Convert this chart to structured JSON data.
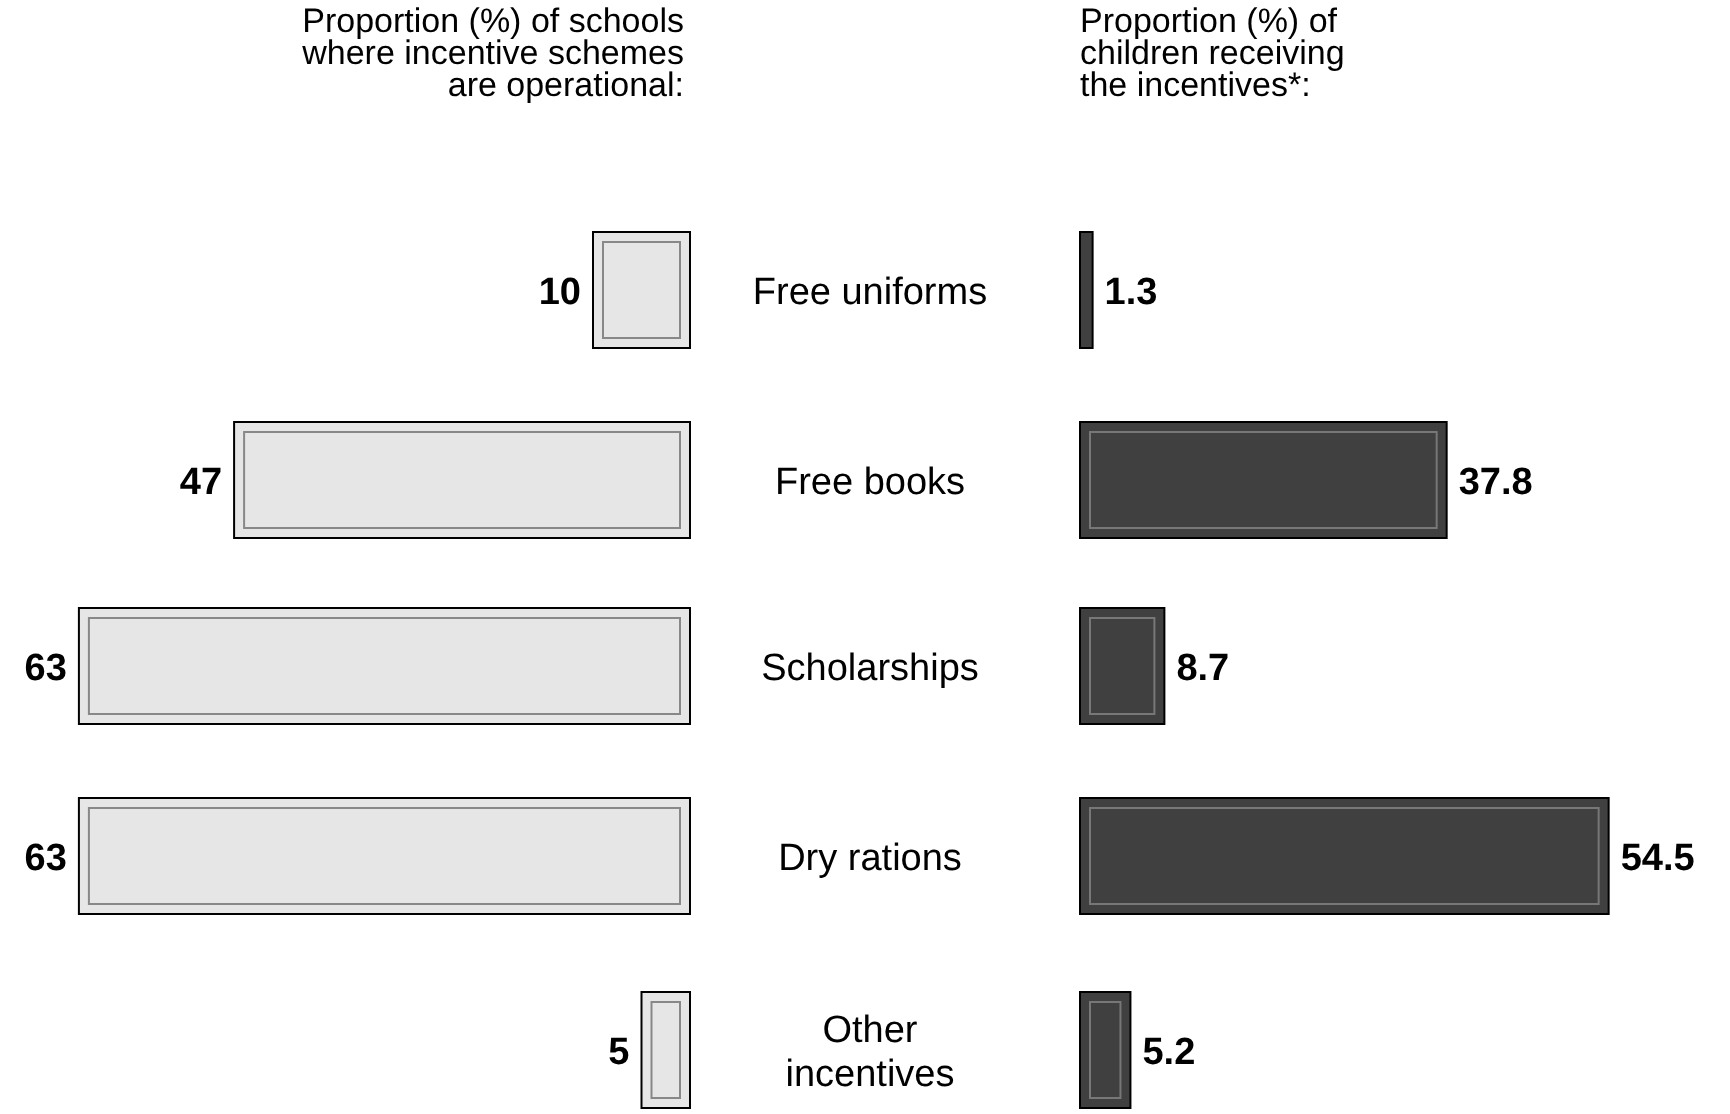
{
  "chart_data": [
    {
      "type": "bar",
      "orientation": "horizontal",
      "title": "Proportion (%) of schools where incentive schemes are operational:",
      "categories": [
        "Free uniforms",
        "Free books",
        "Scholarships",
        "Dry rations",
        "Other incentives"
      ],
      "values": [
        10,
        47,
        63,
        63,
        5
      ],
      "color": "#e6e6e6",
      "data_labels": true,
      "tick_labels": "y"
    },
    {
      "type": "bar",
      "orientation": "horizontal",
      "title": "Proportion (%) of children receiving the incentives*:",
      "categories": [
        null,
        null,
        null,
        null,
        null
      ],
      "values": [
        1.3,
        37.8,
        8.7,
        54.5,
        5.2
      ],
      "color": "#404040",
      "data_labels": true,
      "tick_labels": false
    }
  ]
}
